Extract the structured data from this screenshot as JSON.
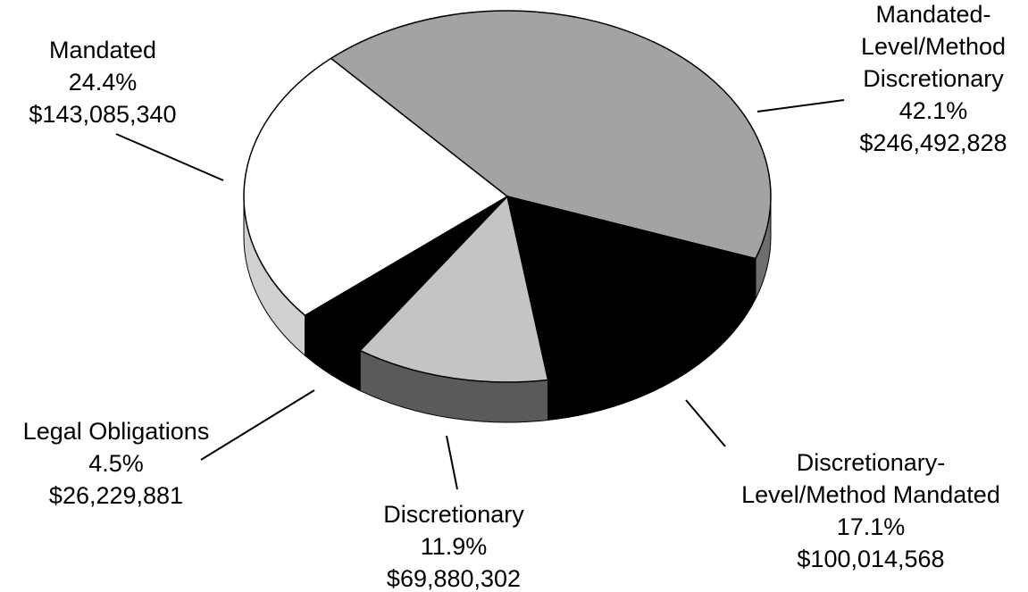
{
  "chart_data": {
    "type": "pie",
    "categories": [
      "Mandated-\nLevel/Method\nDiscretionary",
      "Discretionary-\nLevel/Method Mandated",
      "Discretionary",
      "Legal Obligations",
      "Mandated"
    ],
    "values": [
      42.1,
      17.1,
      11.9,
      4.5,
      24.4
    ],
    "value_labels": [
      "42.1%",
      "17.1%",
      "11.9%",
      "4.5%",
      "24.4%"
    ],
    "amount_labels": [
      "$246,492,828",
      "$100,014,568",
      "$69,880,302",
      "$26,229,881",
      "$143,085,340"
    ],
    "colors": [
      "#a3a3a3",
      "#000000",
      "#c4c4c4",
      "#000000",
      "#ffffff"
    ],
    "side_colors": [
      "#6e6e6e",
      "#000000",
      "#5a5a5a",
      "#000000",
      "#d0d0d0"
    ]
  }
}
